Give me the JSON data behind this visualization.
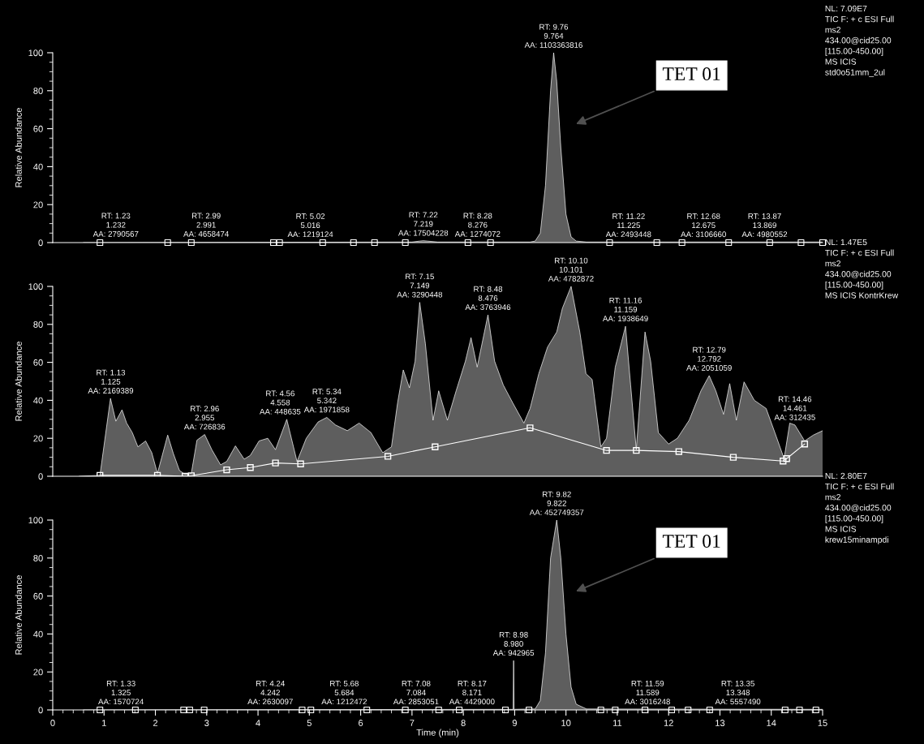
{
  "chart_data": [
    {
      "type": "area",
      "ylabel": "Relative Abundance",
      "xlim": [
        0,
        15
      ],
      "ylim": [
        0,
        100
      ],
      "yticks": [
        0,
        20,
        40,
        60,
        80,
        100
      ],
      "tick_labels": "y",
      "series": [
        {
          "type": "area",
          "color": "#5e5e5e",
          "x": [
            0.6,
            7.0,
            7.15,
            7.22,
            7.3,
            7.5,
            9.3,
            9.4,
            9.5,
            9.6,
            9.7,
            9.76,
            9.82,
            9.9,
            10.0,
            10.1,
            10.2,
            10.4,
            15.0
          ],
          "values": [
            0,
            0.3,
            0.8,
            1,
            0.8,
            0.3,
            0.3,
            0.8,
            5,
            30,
            80,
            100,
            85,
            50,
            15,
            3,
            0.8,
            0.3,
            0.3
          ]
        },
        {
          "type": "scatter",
          "color": "#ffffff",
          "marker": "square",
          "x": [
            0.92,
            2.24,
            2.7,
            4.3,
            4.42,
            5.26,
            5.86,
            6.27,
            6.87,
            8.09,
            8.53,
            10.85,
            11.77,
            12.26,
            13.17,
            13.97,
            14.58,
            15.0
          ],
          "values": [
            0,
            0,
            0,
            0,
            0,
            0,
            0,
            0,
            0,
            0,
            0,
            0,
            0,
            0,
            0,
            0,
            0,
            0
          ]
        }
      ],
      "annotations": [
        {
          "text": "RT: 1.23\n1.232\nAA: 2790567",
          "x": 1.23,
          "y": 0.5
        },
        {
          "text": "RT: 2.99\n2.991\nAA: 4658474",
          "x": 2.99,
          "y": 0.5
        },
        {
          "text": "RT: 5.02\n5.016\nAA: 1219124",
          "x": 5.02,
          "y": 0.3
        },
        {
          "text": "RT: 7.22\n7.219\nAA: 17504228",
          "x": 7.22,
          "y": 1
        },
        {
          "text": "RT: 8.28\n8.276\nAA: 1274072",
          "x": 8.28,
          "y": 0.5
        },
        {
          "text": "RT: 9.76\n9.764\nAA: 1103363816",
          "x": 9.76,
          "y": 100
        },
        {
          "text": "RT: 11.22\n11.225\nAA: 2493448",
          "x": 11.22,
          "y": 0.3
        },
        {
          "text": "RT: 12.68\n12.675\nAA: 3106660",
          "x": 12.68,
          "y": 0.3
        },
        {
          "text": "RT: 13.87\n13.869\nAA: 4980552",
          "x": 13.87,
          "y": 0.3
        },
        "TET 01",
        "NL: 7.09E7\nTIC F: + c ESI Full\nms2\n434.00@cid25.00\n[115.00-450.00]\nMS ICIS\nstd0o51mm_2ul"
      ]
    },
    {
      "type": "area",
      "ylabel": "Relative Abundance",
      "xlim": [
        0,
        15
      ],
      "ylim": [
        0,
        100
      ],
      "yticks": [
        0,
        20,
        40,
        60,
        80,
        100
      ],
      "tick_labels": "y",
      "series": [
        {
          "type": "area",
          "color": "#5e5e5e",
          "x": [
            0.52,
            0.92,
            1.125,
            1.23,
            1.35,
            1.44,
            1.55,
            1.66,
            1.81,
            1.93,
            2.04,
            2.24,
            2.35,
            2.47,
            2.58,
            2.7,
            2.81,
            2.96,
            3.1,
            3.27,
            3.39,
            3.56,
            3.73,
            3.85,
            4.02,
            4.19,
            4.34,
            4.56,
            4.65,
            4.76,
            4.94,
            5.17,
            5.34,
            5.51,
            5.74,
            5.97,
            6.2,
            6.43,
            6.6,
            6.72,
            6.83,
            6.95,
            7.06,
            7.15,
            7.26,
            7.41,
            7.52,
            7.69,
            7.86,
            8.04,
            8.15,
            8.27,
            8.48,
            8.61,
            8.78,
            8.96,
            9.18,
            9.3,
            9.47,
            9.64,
            9.82,
            9.93,
            10.1,
            10.27,
            10.39,
            10.51,
            10.68,
            10.79,
            10.96,
            11.16,
            11.26,
            11.37,
            11.54,
            11.65,
            11.8,
            12.0,
            12.17,
            12.4,
            12.63,
            12.79,
            12.92,
            13.07,
            13.19,
            13.32,
            13.47,
            13.67,
            13.9,
            14.07,
            14.25,
            14.36,
            14.46,
            14.65,
            14.82,
            15.0
          ],
          "values": [
            0,
            0.5,
            41,
            29,
            35,
            28,
            23,
            15.5,
            18.6,
            12.4,
            1.5,
            21.7,
            12,
            3,
            1,
            1.5,
            19,
            22,
            14,
            6,
            7.8,
            16,
            9,
            11,
            18.6,
            20,
            14,
            30,
            20,
            7.8,
            20,
            28.6,
            31,
            27,
            24,
            28,
            23,
            12.4,
            15.5,
            38.8,
            56,
            46.6,
            60.6,
            91.6,
            70,
            29.5,
            45,
            29.5,
            45,
            60.6,
            73,
            57.5,
            85,
            60.6,
            48,
            38.8,
            28,
            35.7,
            54,
            68,
            76,
            88.5,
            100,
            76,
            54,
            51,
            15.5,
            20,
            57.5,
            79,
            48,
            14,
            76,
            60.6,
            23,
            17,
            20,
            29.5,
            45,
            53,
            45,
            32.6,
            48.8,
            29.5,
            49.7,
            40,
            35.7,
            23,
            9.3,
            28,
            27,
            18.6,
            21.7,
            24
          ]
        },
        {
          "type": "line",
          "color": "#ffffff",
          "marker": "square",
          "x": [
            0.92,
            2.04,
            2.58,
            2.7,
            3.39,
            3.85,
            4.34,
            4.83,
            6.53,
            7.45,
            9.3,
            10.79,
            11.37,
            12.2,
            13.26,
            14.23,
            14.3,
            14.65
          ],
          "values": [
            0.5,
            0.5,
            0,
            0.3,
            3.4,
            4.6,
            7,
            6.5,
            10.5,
            15.5,
            25.5,
            13.6,
            13.6,
            13,
            10,
            8,
            9.3,
            17
          ]
        }
      ],
      "annotations": [
        {
          "text": "RT: 1.13\n1.125\nAA: 2169389",
          "x": 1.13,
          "y": 41
        },
        {
          "text": "RT: 2.96\n2.955\nAA: 726836",
          "x": 2.96,
          "y": 22
        },
        {
          "text": "RT: 4.56\n4.558\nAA: 448635",
          "x": 4.56,
          "y": 30
        },
        {
          "text": "RT: 5.34\n5.342\nAA: 1971858",
          "x": 5.34,
          "y": 31
        },
        {
          "text": "RT: 7.15\n7.149\nAA: 3290448",
          "x": 7.15,
          "y": 91.6
        },
        {
          "text": "RT: 8.48\n8.476\nAA: 3763946",
          "x": 8.48,
          "y": 85
        },
        {
          "text": "RT: 10.10\n10.101\nAA: 4782872",
          "x": 10.1,
          "y": 100
        },
        {
          "text": "RT: 11.16\n11.159\nAA: 1938649",
          "x": 11.16,
          "y": 79
        },
        {
          "text": "RT: 12.79\n12.792\nAA: 2051059",
          "x": 12.79,
          "y": 53
        },
        {
          "text": "RT: 14.46\n14.461\nAA: 312435",
          "x": 14.46,
          "y": 27
        },
        "NL: 1.47E5\nTIC F: + c ESI Full\nms2\n434.00@cid25.00\n[115.00-450.00]\nMS ICIS KontrKrew"
      ]
    },
    {
      "type": "area",
      "ylabel": "Relative Abundance",
      "xlabel": "Time (min)",
      "xlim": [
        0,
        15
      ],
      "ylim": [
        0,
        100
      ],
      "xticks": [
        0,
        1,
        2,
        3,
        4,
        5,
        6,
        7,
        8,
        9,
        10,
        11,
        12,
        13,
        14,
        15
      ],
      "yticks": [
        0,
        20,
        40,
        60,
        80,
        100
      ],
      "series": [
        {
          "type": "area",
          "color": "#5e5e5e",
          "x": [
            0.6,
            8.9,
            8.97,
            8.98,
            8.99,
            9.4,
            9.5,
            9.6,
            9.7,
            9.82,
            9.9,
            10.0,
            10.1,
            10.2,
            10.4,
            15.0
          ],
          "values": [
            0,
            0.3,
            0.3,
            26,
            0.3,
            0.5,
            5,
            30,
            80,
            100,
            80,
            40,
            12,
            3,
            0.5,
            0.3
          ]
        },
        {
          "type": "scatter",
          "color": "#ffffff",
          "marker": "square",
          "x": [
            0.92,
            1.61,
            2.55,
            2.67,
            2.95,
            4.86,
            5.03,
            6.12,
            6.87,
            7.52,
            7.92,
            8.82,
            9.28,
            10.68,
            10.96,
            11.54,
            12.06,
            12.38,
            12.8,
            14.27,
            14.55,
            14.87
          ],
          "values": [
            0,
            0,
            0,
            0,
            0,
            0,
            0,
            0,
            0,
            0,
            0,
            0,
            0,
            0,
            0,
            0,
            0,
            0,
            0,
            0,
            0,
            0
          ]
        }
      ],
      "annotations": [
        {
          "text": "RT: 1.33\n1.325\nAA: 1570724",
          "x": 1.33,
          "y": 0.3
        },
        {
          "text": "RT: 4.24\n4.242\nAA: 2630097",
          "x": 4.24,
          "y": 0.3
        },
        {
          "text": "RT: 5.68\n5.684\nAA: 1212472",
          "x": 5.68,
          "y": 0.3
        },
        {
          "text": "RT: 7.08\n7.084\nAA: 2853051",
          "x": 7.08,
          "y": 0.3
        },
        {
          "text": "RT: 8.17\n8.171\nAA: 4429000",
          "x": 8.17,
          "y": 0.3
        },
        {
          "text": "RT: 8.98\n8.980\nAA: 942965",
          "x": 8.98,
          "y": 26
        },
        {
          "text": "RT: 9.82\n9.822\nAA: 452749357",
          "x": 9.82,
          "y": 100
        },
        {
          "text": "RT: 11.59\n11.589\nAA: 3016248",
          "x": 11.59,
          "y": 0.3
        },
        {
          "text": "RT: 13.35\n13.348\nAA: 5557490",
          "x": 13.35,
          "y": 0.3
        },
        "TET 01",
        "NL: 2.80E7\nTIC F: + c ESI Full\nms2\n434.00@cid25.00\n[115.00-450.00]\nMS ICIS\nkrew15minampdi"
      ]
    }
  ]
}
